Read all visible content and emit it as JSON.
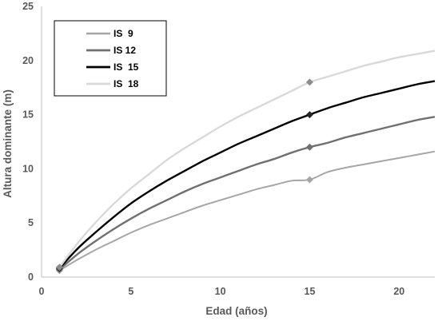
{
  "chart_data": {
    "type": "line",
    "xlabel": "Edad (años)",
    "ylabel": "Altura dominante (m)",
    "xlim": [
      0,
      22
    ],
    "ylim": [
      0,
      25
    ],
    "xticks": [
      0,
      5,
      10,
      15,
      20
    ],
    "yticks": [
      0,
      5,
      10,
      15,
      20,
      25
    ],
    "grid": false,
    "legend_position": "top-left",
    "marker_x": 15,
    "series": [
      {
        "name": "IS  9",
        "color": "#a6a6a6",
        "width": 2.0,
        "x": [
          1,
          2,
          3,
          4,
          5,
          6,
          7,
          8,
          9,
          10,
          11,
          12,
          13,
          14,
          15,
          16,
          17,
          18,
          19,
          20,
          21,
          22
        ],
        "y": [
          0.6,
          1.6,
          2.5,
          3.3,
          4.1,
          4.8,
          5.4,
          6.0,
          6.6,
          7.1,
          7.6,
          8.1,
          8.5,
          8.9,
          9.0,
          9.7,
          10.1,
          10.4,
          10.7,
          11.0,
          11.3,
          11.6
        ]
      },
      {
        "name": "IS 12",
        "color": "#707070",
        "width": 2.4,
        "x": [
          1,
          2,
          3,
          4,
          5,
          6,
          7,
          8,
          9,
          10,
          11,
          12,
          13,
          14,
          15,
          16,
          17,
          18,
          19,
          20,
          21,
          22
        ],
        "y": [
          0.7,
          2.1,
          3.3,
          4.4,
          5.4,
          6.3,
          7.1,
          7.9,
          8.6,
          9.2,
          9.8,
          10.4,
          10.9,
          11.5,
          12.0,
          12.4,
          12.9,
          13.3,
          13.7,
          14.1,
          14.5,
          14.8
        ]
      },
      {
        "name": "IS  15",
        "color": "#000000",
        "width": 2.4,
        "x": [
          1,
          2,
          3,
          4,
          5,
          6,
          7,
          8,
          9,
          10,
          11,
          12,
          13,
          14,
          15,
          16,
          17,
          18,
          19,
          20,
          21,
          22
        ],
        "y": [
          0.8,
          2.6,
          4.1,
          5.5,
          6.8,
          7.9,
          8.9,
          9.8,
          10.7,
          11.5,
          12.3,
          13.0,
          13.7,
          14.4,
          15.0,
          15.6,
          16.1,
          16.6,
          17.0,
          17.4,
          17.8,
          18.1
        ]
      },
      {
        "name": "IS  18",
        "color": "#d9d9d9",
        "width": 2.4,
        "x": [
          1,
          2,
          3,
          4,
          5,
          6,
          7,
          8,
          9,
          10,
          11,
          12,
          13,
          14,
          15,
          16,
          17,
          18,
          19,
          20,
          21,
          22
        ],
        "y": [
          0.9,
          3.1,
          5.0,
          6.7,
          8.2,
          9.5,
          10.8,
          11.9,
          12.9,
          13.9,
          14.8,
          15.6,
          16.4,
          17.2,
          18.0,
          18.5,
          19.0,
          19.5,
          19.9,
          20.3,
          20.6,
          20.9
        ]
      }
    ]
  }
}
